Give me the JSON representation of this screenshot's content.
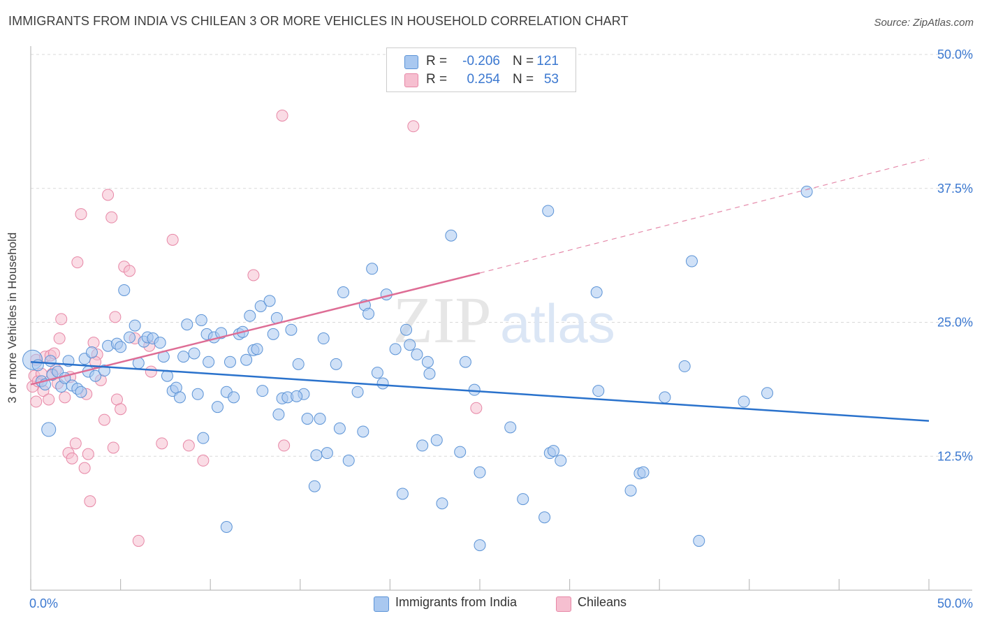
{
  "title": "IMMIGRANTS FROM INDIA VS CHILEAN 3 OR MORE VEHICLES IN HOUSEHOLD CORRELATION CHART",
  "source": "Source: ZipAtlas.com",
  "watermark": {
    "part1": "ZIP",
    "part2": "atlas"
  },
  "legend": {
    "rows": [
      {
        "r_label": "R =",
        "r_value": "-0.206",
        "n_label": "N =",
        "n_value": "121"
      },
      {
        "r_label": "R =",
        "r_value": "0.254",
        "n_label": "N =",
        "n_value": "53"
      }
    ]
  },
  "bottom_legend": [
    "Immigrants from India",
    "Chileans"
  ],
  "colors": {
    "india_fill": "#a9c8f0",
    "india_stroke": "#5b93d6",
    "india_line": "#2a72cc",
    "chile_fill": "#f6bfd0",
    "chile_stroke": "#e787a6",
    "chile_line": "#de6d95",
    "axis_label": "#3b78d0",
    "grid": "#d9d9d9"
  },
  "chart_data": {
    "type": "scatter",
    "title": "IMMIGRANTS FROM INDIA VS CHILEAN 3 OR MORE VEHICLES IN HOUSEHOLD CORRELATION CHART",
    "xlabel": "",
    "ylabel": "3 or more Vehicles in Household",
    "xlim": [
      0,
      50
    ],
    "ylim": [
      0,
      50
    ],
    "x_tick_labels": [
      "0.0%",
      "50.0%"
    ],
    "y_tick_labels": [
      "12.5%",
      "25.0%",
      "37.5%",
      "50.0%"
    ],
    "y_ticks": [
      12.5,
      25,
      37.5,
      50
    ],
    "grid": "horizontal dashed",
    "legend_position": "top-center",
    "series": [
      {
        "name": "Immigrants from India",
        "r": -0.206,
        "n": 121,
        "trend": {
          "x": [
            0,
            50
          ],
          "y": [
            21.3,
            15.8
          ],
          "style": "solid"
        },
        "points": [
          [
            0.1,
            21.5
          ],
          [
            0.4,
            21.0
          ],
          [
            0.6,
            19.5
          ],
          [
            0.8,
            19.2
          ],
          [
            1.0,
            15.0
          ],
          [
            1.1,
            21.4
          ],
          [
            1.2,
            20.1
          ],
          [
            1.5,
            20.4
          ],
          [
            1.7,
            19.0
          ],
          [
            1.9,
            19.8
          ],
          [
            2.1,
            21.4
          ],
          [
            2.3,
            19.1
          ],
          [
            2.6,
            18.8
          ],
          [
            2.8,
            18.5
          ],
          [
            3.0,
            21.6
          ],
          [
            3.2,
            20.4
          ],
          [
            3.4,
            22.2
          ],
          [
            3.6,
            20.0
          ],
          [
            4.1,
            20.5
          ],
          [
            4.3,
            22.8
          ],
          [
            4.8,
            23.0
          ],
          [
            5.0,
            22.7
          ],
          [
            5.2,
            28.0
          ],
          [
            5.5,
            23.6
          ],
          [
            5.8,
            24.7
          ],
          [
            6.0,
            21.2
          ],
          [
            6.3,
            23.2
          ],
          [
            6.5,
            23.6
          ],
          [
            6.8,
            23.5
          ],
          [
            7.2,
            23.1
          ],
          [
            7.4,
            21.8
          ],
          [
            7.6,
            20.0
          ],
          [
            7.9,
            18.6
          ],
          [
            8.1,
            18.9
          ],
          [
            8.3,
            18.0
          ],
          [
            8.5,
            21.8
          ],
          [
            8.7,
            24.8
          ],
          [
            9.1,
            22.1
          ],
          [
            9.3,
            18.3
          ],
          [
            9.5,
            25.2
          ],
          [
            9.6,
            14.2
          ],
          [
            9.8,
            23.9
          ],
          [
            9.9,
            21.3
          ],
          [
            10.2,
            23.6
          ],
          [
            10.4,
            17.1
          ],
          [
            10.6,
            24.0
          ],
          [
            10.9,
            18.5
          ],
          [
            11.1,
            21.3
          ],
          [
            11.3,
            18.0
          ],
          [
            11.6,
            23.9
          ],
          [
            11.8,
            24.1
          ],
          [
            12.0,
            21.5
          ],
          [
            12.2,
            25.6
          ],
          [
            12.4,
            22.4
          ],
          [
            12.6,
            22.5
          ],
          [
            12.8,
            26.5
          ],
          [
            12.9,
            18.6
          ],
          [
            13.3,
            27.0
          ],
          [
            13.5,
            23.9
          ],
          [
            13.7,
            25.4
          ],
          [
            13.8,
            16.4
          ],
          [
            14.0,
            17.9
          ],
          [
            14.3,
            18.0
          ],
          [
            14.5,
            24.3
          ],
          [
            14.9,
            21.1
          ],
          [
            15.2,
            18.3
          ],
          [
            15.4,
            16.0
          ],
          [
            15.8,
            9.7
          ],
          [
            15.9,
            12.6
          ],
          [
            16.1,
            16.0
          ],
          [
            16.3,
            23.5
          ],
          [
            16.5,
            12.8
          ],
          [
            17.0,
            21.1
          ],
          [
            17.2,
            15.1
          ],
          [
            17.4,
            27.8
          ],
          [
            17.7,
            12.1
          ],
          [
            18.2,
            18.5
          ],
          [
            18.5,
            14.8
          ],
          [
            18.6,
            26.6
          ],
          [
            18.8,
            25.8
          ],
          [
            19.0,
            30.0
          ],
          [
            19.3,
            20.3
          ],
          [
            19.6,
            19.3
          ],
          [
            19.8,
            27.6
          ],
          [
            20.3,
            22.5
          ],
          [
            20.7,
            9.0
          ],
          [
            20.9,
            24.3
          ],
          [
            21.1,
            22.9
          ],
          [
            21.8,
            13.5
          ],
          [
            22.1,
            21.3
          ],
          [
            22.2,
            20.2
          ],
          [
            22.6,
            14.0
          ],
          [
            22.9,
            8.1
          ],
          [
            23.4,
            33.1
          ],
          [
            23.9,
            12.9
          ],
          [
            24.2,
            21.3
          ],
          [
            24.7,
            18.7
          ],
          [
            25.0,
            11.0
          ],
          [
            25.0,
            4.2
          ],
          [
            26.7,
            15.2
          ],
          [
            27.4,
            8.5
          ],
          [
            28.6,
            6.8
          ],
          [
            28.8,
            35.4
          ],
          [
            28.9,
            12.8
          ],
          [
            29.1,
            13.0
          ],
          [
            29.5,
            12.1
          ],
          [
            31.5,
            27.8
          ],
          [
            31.6,
            18.6
          ],
          [
            33.4,
            9.3
          ],
          [
            33.9,
            10.9
          ],
          [
            34.1,
            11.0
          ],
          [
            35.3,
            18.0
          ],
          [
            36.4,
            20.9
          ],
          [
            36.8,
            30.7
          ],
          [
            37.2,
            4.6
          ],
          [
            39.7,
            17.6
          ],
          [
            41.0,
            18.4
          ],
          [
            43.2,
            37.2
          ],
          [
            10.9,
            5.9
          ],
          [
            14.8,
            18.1
          ],
          [
            21.5,
            22.0
          ]
        ]
      },
      {
        "name": "Chileans",
        "r": 0.254,
        "n": 53,
        "trend": {
          "x": [
            0,
            25
          ],
          "y": [
            19.2,
            29.6
          ],
          "style": "solid",
          "extension": {
            "x": [
              25,
              50
            ],
            "y": [
              29.6,
              40.3
            ],
            "style": "dashed"
          }
        },
        "points": [
          [
            0.1,
            19.0
          ],
          [
            0.2,
            20.0
          ],
          [
            0.3,
            21.5
          ],
          [
            0.4,
            19.5
          ],
          [
            0.6,
            20.2
          ],
          [
            0.7,
            18.6
          ],
          [
            0.8,
            21.8
          ],
          [
            1.0,
            17.8
          ],
          [
            1.1,
            21.9
          ],
          [
            1.2,
            20.2
          ],
          [
            1.3,
            22.1
          ],
          [
            1.5,
            19.3
          ],
          [
            1.6,
            23.5
          ],
          [
            1.7,
            25.3
          ],
          [
            1.9,
            18.0
          ],
          [
            2.1,
            12.8
          ],
          [
            2.3,
            12.3
          ],
          [
            2.5,
            13.7
          ],
          [
            2.6,
            30.6
          ],
          [
            2.8,
            35.1
          ],
          [
            3.0,
            11.4
          ],
          [
            3.1,
            18.3
          ],
          [
            3.2,
            12.7
          ],
          [
            3.3,
            8.3
          ],
          [
            3.5,
            23.1
          ],
          [
            3.7,
            22.0
          ],
          [
            3.9,
            19.6
          ],
          [
            4.1,
            15.9
          ],
          [
            4.3,
            36.9
          ],
          [
            4.5,
            34.8
          ],
          [
            4.6,
            13.3
          ],
          [
            4.7,
            25.5
          ],
          [
            4.8,
            17.8
          ],
          [
            5.0,
            16.9
          ],
          [
            5.2,
            30.2
          ],
          [
            5.5,
            29.8
          ],
          [
            5.8,
            23.5
          ],
          [
            6.0,
            4.6
          ],
          [
            6.6,
            22.8
          ],
          [
            6.7,
            20.4
          ],
          [
            7.3,
            13.7
          ],
          [
            7.9,
            32.7
          ],
          [
            8.8,
            13.5
          ],
          [
            9.6,
            12.1
          ],
          [
            12.4,
            29.4
          ],
          [
            14.0,
            44.3
          ],
          [
            14.1,
            13.5
          ],
          [
            21.3,
            43.3
          ],
          [
            24.8,
            17.0
          ],
          [
            0.3,
            17.6
          ],
          [
            1.4,
            20.6
          ],
          [
            2.2,
            19.9
          ],
          [
            3.6,
            21.3
          ]
        ]
      }
    ]
  }
}
